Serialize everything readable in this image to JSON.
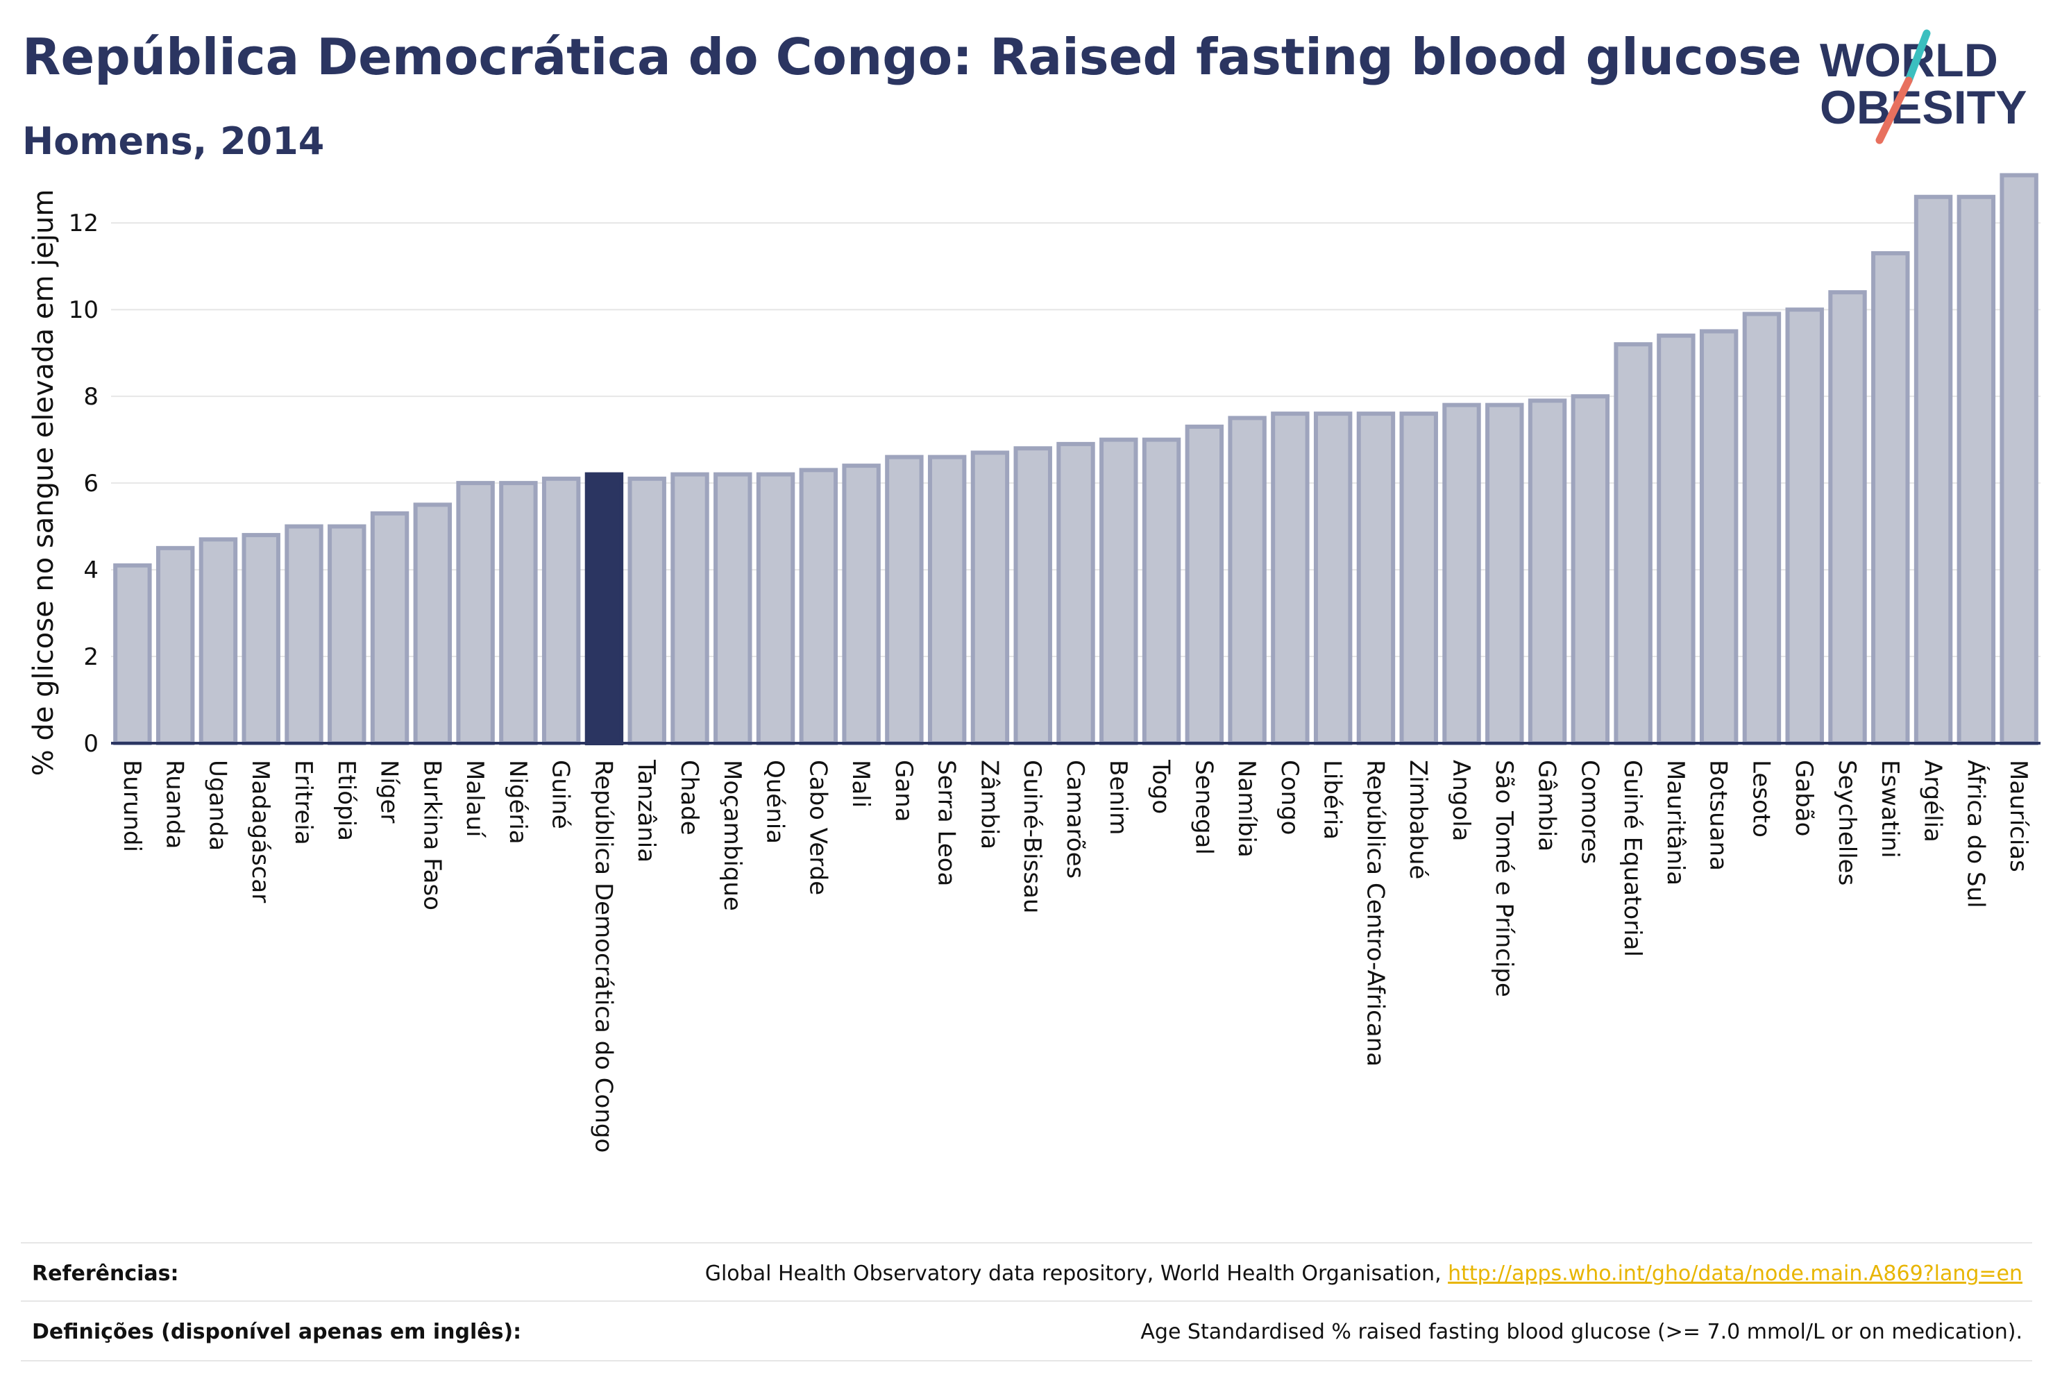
{
  "header": {
    "title": "República Democrática do Congo: Raised fasting blood glucose",
    "subtitle": "Homens, 2014"
  },
  "logo": {
    "line1": "WORLD",
    "line2": "OBESITY",
    "colors": {
      "text": "#2b3561",
      "slash_top": "#3bbfbf",
      "slash_bottom": "#e8705e"
    }
  },
  "colors": {
    "bar": "#c0c4d1",
    "bar_outline": "#9ea4bd",
    "highlight": "#2b3561",
    "grid": "#e6e6e6",
    "axis": "#2b3561"
  },
  "chart_data": {
    "type": "bar",
    "title": "República Democrática do Congo: Raised fasting blood glucose",
    "subtitle": "Homens, 2014",
    "xlabel": "",
    "ylabel": "% de glicose no sangue elevada em jejum",
    "ylim": [
      0,
      13.3
    ],
    "yticks": [
      0,
      2,
      4,
      6,
      8,
      10,
      12
    ],
    "grid": true,
    "highlight": "República Democrática do Congo",
    "categories": [
      "Burundi",
      "Ruanda",
      "Uganda",
      "Madagáscar",
      "Eritreia",
      "Etiópia",
      "Níger",
      "Burkina Faso",
      "Malauí",
      "Nigéria",
      "Guiné",
      "República Democrática do Congo",
      "Tanzânia",
      "Chade",
      "Moçambique",
      "Quénia",
      "Cabo Verde",
      "Mali",
      "Gana",
      "Serra Leoa",
      "Zâmbia",
      "Guiné-Bissau",
      "Camarões",
      "Benim",
      "Togo",
      "Senegal",
      "Namíbia",
      "Congo",
      "Libéria",
      "República Centro-Africana",
      "Zimbabué",
      "Angola",
      "São Tomé e Príncipe",
      "Gâmbia",
      "Comores",
      "Guiné Equatorial",
      "Mauritânia",
      "Botsuana",
      "Lesoto",
      "Gabão",
      "Seychelles",
      "Eswatini",
      "Argélia",
      "África do Sul",
      "Maurícias"
    ],
    "values": [
      4.1,
      4.5,
      4.7,
      4.8,
      5.0,
      5.0,
      5.3,
      5.5,
      6.0,
      6.0,
      6.1,
      6.2,
      6.1,
      6.2,
      6.2,
      6.2,
      6.3,
      6.4,
      6.6,
      6.6,
      6.7,
      6.8,
      6.9,
      7.0,
      7.0,
      7.3,
      7.5,
      7.6,
      7.6,
      7.6,
      7.6,
      7.8,
      7.8,
      7.9,
      8.0,
      9.2,
      9.4,
      9.5,
      9.9,
      10.0,
      10.4,
      11.3,
      12.6,
      12.6,
      13.1
    ]
  },
  "footer": {
    "references_label": "Referências:",
    "references_text": "Global Health Observatory data repository, World Health Organisation, ",
    "references_link": "http://apps.who.int/gho/data/node.main.A869?lang=en",
    "definitions_label": "Definições (disponível apenas em inglês):",
    "definitions_text": "Age Standardised % raised fasting blood glucose (>= 7.0 mmol/L or on medication)."
  }
}
